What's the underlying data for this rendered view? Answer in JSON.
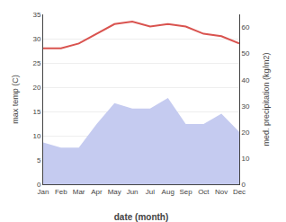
{
  "chart_data": {
    "type": "line",
    "categories": [
      "Jan",
      "Feb",
      "Mar",
      "Apr",
      "May",
      "Jun",
      "Jul",
      "Aug",
      "Sep",
      "Oct",
      "Nov",
      "Dec"
    ],
    "series": [
      {
        "type": "area",
        "axis": "y2",
        "color": "#c5cbf0",
        "values": [
          16,
          14,
          14,
          23,
          31,
          29,
          29,
          33,
          23,
          23,
          27,
          20
        ]
      },
      {
        "type": "line",
        "color": "#d9534f",
        "values": [
          28,
          28,
          29,
          31,
          33,
          33.5,
          32.5,
          33,
          32.5,
          31,
          30.5,
          29
        ]
      }
    ],
    "xlabel": "date (month)",
    "ylabel": "max temp (C)",
    "y2label": "med. precipitation (kg/m2)",
    "ylim": [
      0,
      35
    ],
    "yticks": [
      0,
      5,
      10,
      15,
      20,
      25,
      30,
      35
    ],
    "y2lim": [
      0,
      65
    ],
    "y2ticks": [
      0,
      10,
      20,
      30,
      40,
      50,
      60
    ],
    "grid": true
  }
}
